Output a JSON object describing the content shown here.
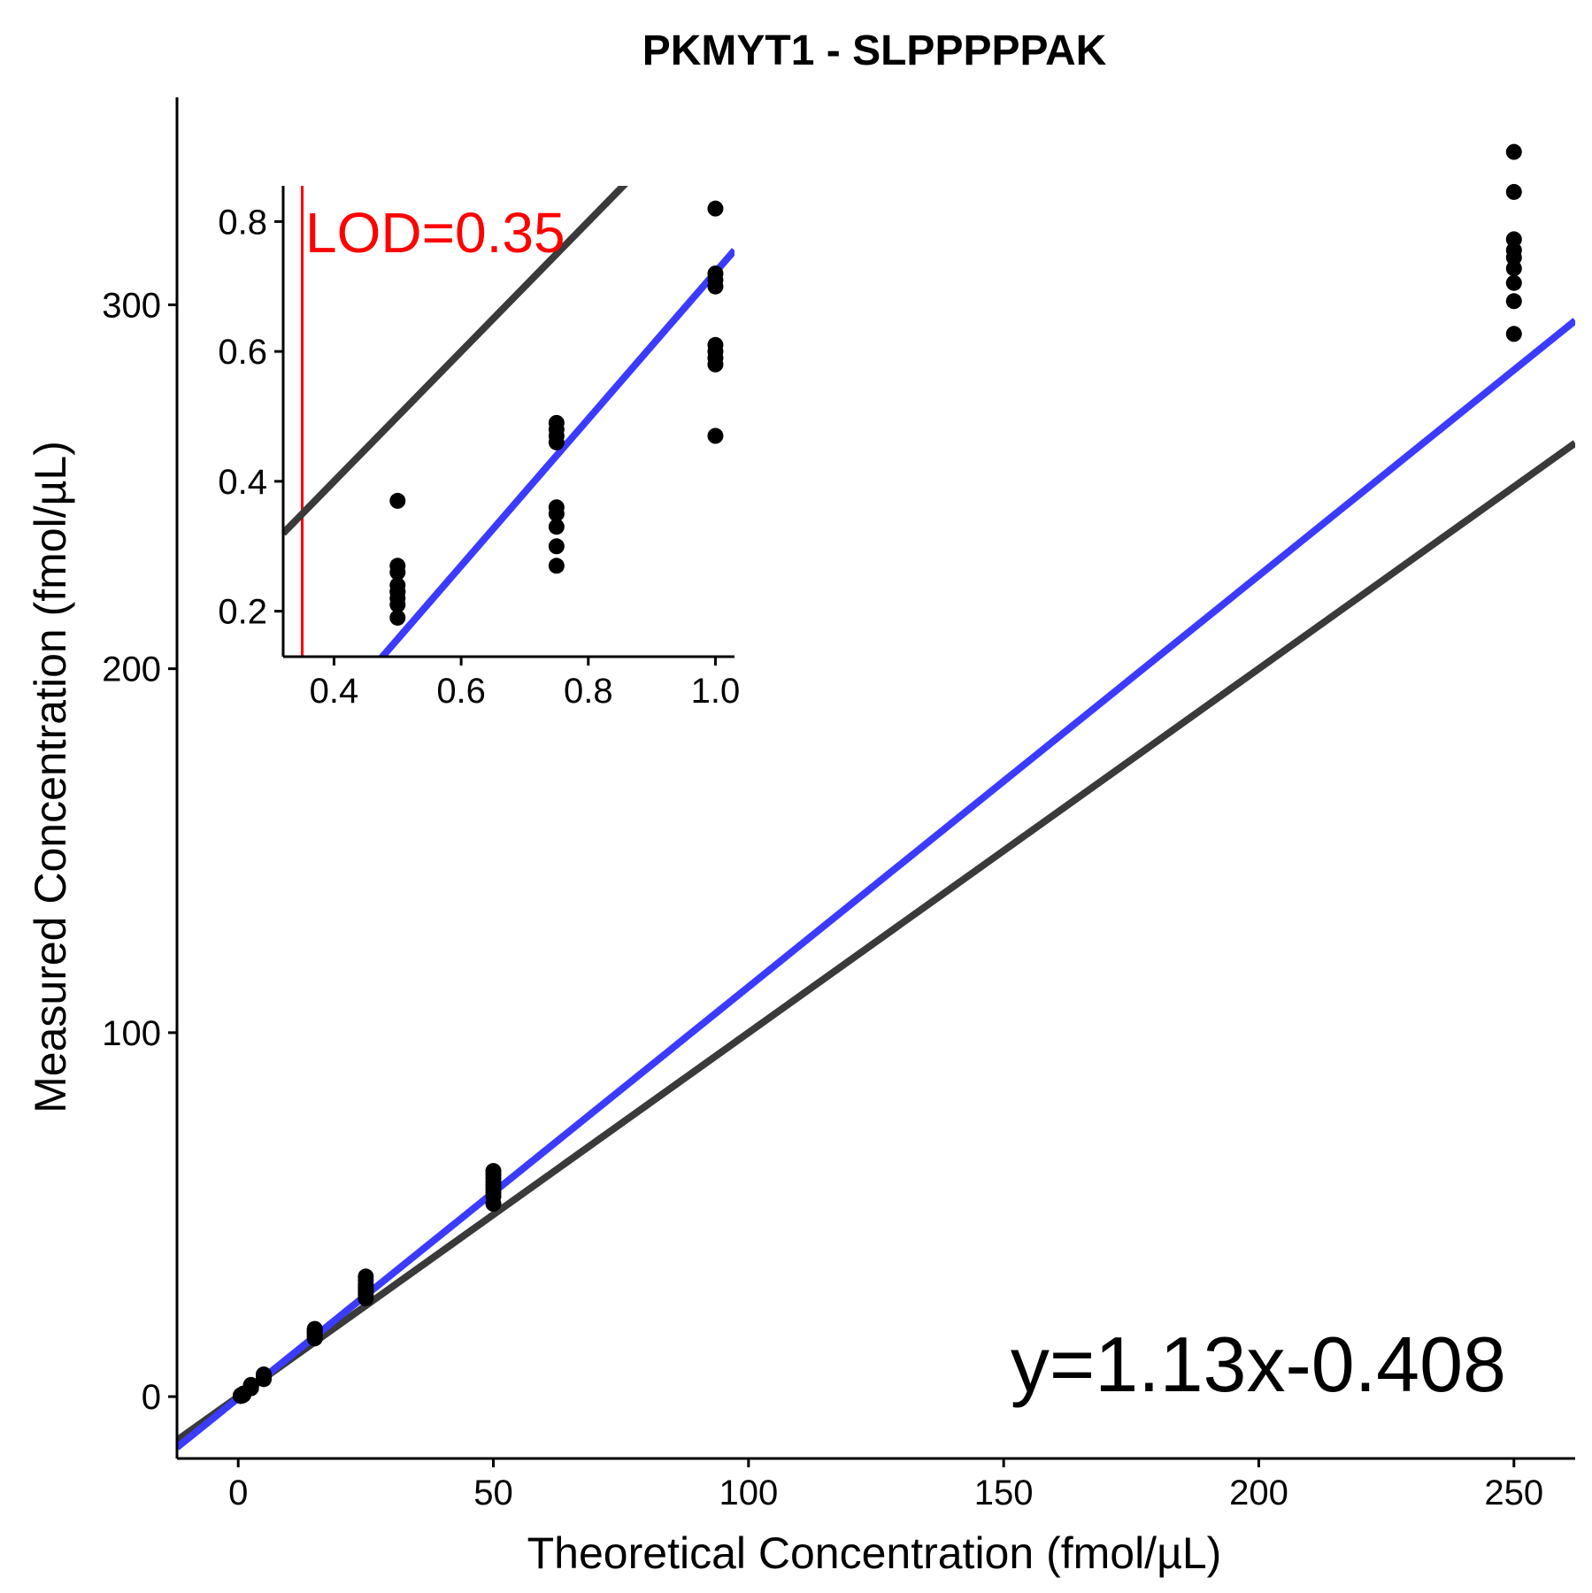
{
  "chart_data": [
    {
      "id": "main",
      "type": "scatter",
      "title": "PKMYT1 - SLPPPPPAK",
      "xlabel": "Theoretical Concentration (fmol/µL)",
      "ylabel": "Measured Concentration (fmol/µL)",
      "xlim": [
        -12,
        262
      ],
      "ylim": [
        -17,
        357
      ],
      "xticks": [
        0,
        50,
        100,
        150,
        200,
        250
      ],
      "yticks": [
        0,
        100,
        200,
        300
      ],
      "grid": false,
      "legend": "none",
      "annotation": "y=1.13x-0.408",
      "lines": [
        {
          "role": "identity",
          "slope": 1,
          "intercept": 0,
          "color": "#3a3a3a"
        },
        {
          "role": "fit",
          "slope": 1.13,
          "intercept": -0.408,
          "color": "#3b3bff"
        }
      ],
      "points": {
        "x": [
          0.5,
          0.5,
          0.5,
          0.5,
          0.5,
          0.5,
          0.5,
          0.5,
          0.5,
          0.75,
          0.75,
          0.75,
          0.75,
          0.75,
          0.75,
          0.75,
          0.75,
          0.75,
          1,
          1,
          1,
          1,
          1,
          1,
          1,
          1,
          1,
          2.5,
          2.5,
          2.5,
          2.5,
          2.5,
          2.5,
          2.5,
          2.5,
          5,
          5,
          5,
          5,
          5,
          5,
          5,
          5,
          15,
          15,
          15,
          15,
          15,
          15,
          15,
          15,
          25,
          25,
          25,
          25,
          25,
          25,
          25,
          25,
          50,
          50,
          50,
          50,
          50,
          50,
          50,
          50,
          50,
          250,
          250,
          250,
          250,
          250,
          250,
          250,
          250,
          250
        ],
        "y": [
          0.19,
          0.21,
          0.22,
          0.23,
          0.23,
          0.24,
          0.26,
          0.27,
          0.37,
          0.27,
          0.3,
          0.33,
          0.35,
          0.36,
          0.46,
          0.47,
          0.48,
          0.49,
          0.47,
          0.58,
          0.59,
          0.6,
          0.61,
          0.7,
          0.71,
          0.72,
          0.82,
          2.3,
          2.5,
          2.7,
          2.8,
          2.9,
          3.0,
          3.1,
          3.2,
          4.8,
          5.0,
          5.2,
          5.4,
          5.6,
          5.8,
          5.9,
          6.1,
          16.0,
          16.5,
          17.0,
          17.3,
          17.6,
          18.0,
          18.3,
          18.6,
          27.0,
          28.0,
          28.8,
          29.5,
          30.0,
          30.8,
          32.0,
          33.0,
          53.0,
          55.0,
          56.0,
          57.0,
          58.0,
          59.0,
          60.0,
          61.0,
          62.0,
          292,
          301,
          306,
          310,
          313,
          315,
          318,
          331,
          342
        ]
      }
    },
    {
      "id": "inset",
      "type": "scatter",
      "xlim": [
        0.32,
        1.03
      ],
      "ylim": [
        0.13,
        0.855
      ],
      "xticks": [
        0.4,
        0.6,
        0.8,
        1.0
      ],
      "yticks": [
        0.2,
        0.4,
        0.6,
        0.8
      ],
      "grid": false,
      "legend": "none",
      "lod": {
        "value": 0.35,
        "label": "LOD=0.35",
        "color": "#ff0000"
      },
      "lines": [
        {
          "role": "identity",
          "slope": 1,
          "intercept": 0,
          "color": "#3a3a3a"
        },
        {
          "role": "fit",
          "slope": 1.13,
          "intercept": -0.408,
          "color": "#3b3bff"
        }
      ],
      "points": {
        "x": [
          0.5,
          0.5,
          0.5,
          0.5,
          0.5,
          0.5,
          0.5,
          0.5,
          0.5,
          0.75,
          0.75,
          0.75,
          0.75,
          0.75,
          0.75,
          0.75,
          0.75,
          0.75,
          1,
          1,
          1,
          1,
          1,
          1,
          1,
          1,
          1
        ],
        "y": [
          0.19,
          0.21,
          0.22,
          0.23,
          0.23,
          0.24,
          0.26,
          0.27,
          0.37,
          0.27,
          0.3,
          0.33,
          0.35,
          0.36,
          0.46,
          0.47,
          0.48,
          0.49,
          0.47,
          0.58,
          0.59,
          0.6,
          0.61,
          0.7,
          0.71,
          0.72,
          0.82
        ]
      }
    }
  ]
}
